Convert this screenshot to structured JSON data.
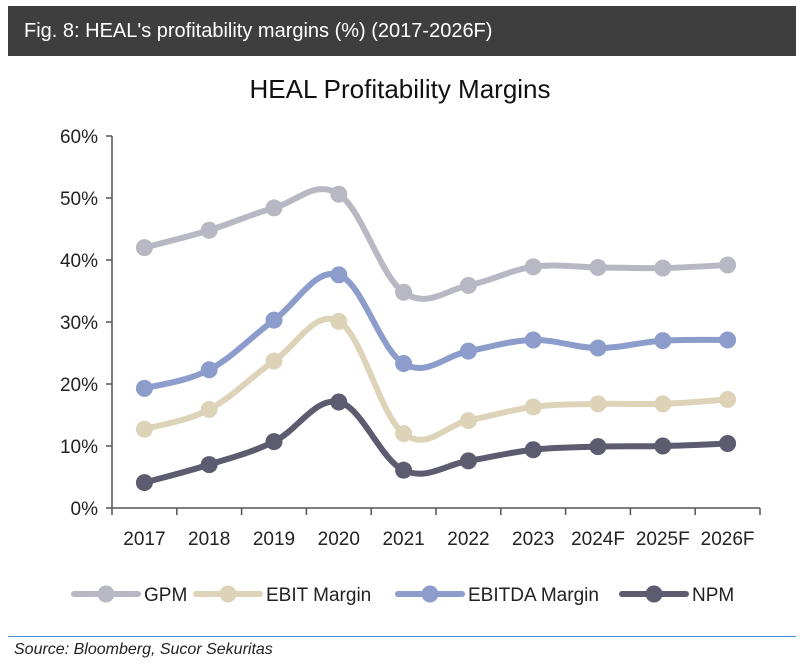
{
  "header": {
    "title": "Fig. 8: HEAL's profitability margins (%) (2017-2026F)"
  },
  "chart_data": {
    "type": "line",
    "title": "HEAL Profitability Margins",
    "categories": [
      "2017",
      "2018",
      "2019",
      "2020",
      "2021",
      "2022",
      "2023",
      "2024F",
      "2025F",
      "2026F"
    ],
    "ylim": [
      0,
      60
    ],
    "yticks": [
      "0%",
      "10%",
      "20%",
      "30%",
      "40%",
      "50%",
      "60%"
    ],
    "grid": false,
    "legend_position": "bottom",
    "series": [
      {
        "name": "GPM",
        "color": "#b8b8c4",
        "values": [
          42.0,
          44.8,
          48.4,
          50.6,
          34.8,
          35.9,
          38.9,
          38.8,
          38.7,
          39.2
        ]
      },
      {
        "name": "EBIT Margin",
        "color": "#ddd3b8",
        "values": [
          12.7,
          15.9,
          23.7,
          30.1,
          12.0,
          14.1,
          16.3,
          16.8,
          16.8,
          17.5
        ]
      },
      {
        "name": "EBITDA Margin",
        "color": "#8d9dcb",
        "values": [
          19.3,
          22.3,
          30.3,
          37.6,
          23.3,
          25.3,
          27.1,
          25.8,
          27.0,
          27.1
        ]
      },
      {
        "name": "NPM",
        "color": "#5c5b6f",
        "values": [
          4.1,
          7.0,
          10.7,
          17.1,
          6.1,
          7.6,
          9.4,
          9.9,
          10.0,
          10.4
        ]
      }
    ]
  },
  "source": "Source: Bloomberg, Sucor Sekuritas"
}
